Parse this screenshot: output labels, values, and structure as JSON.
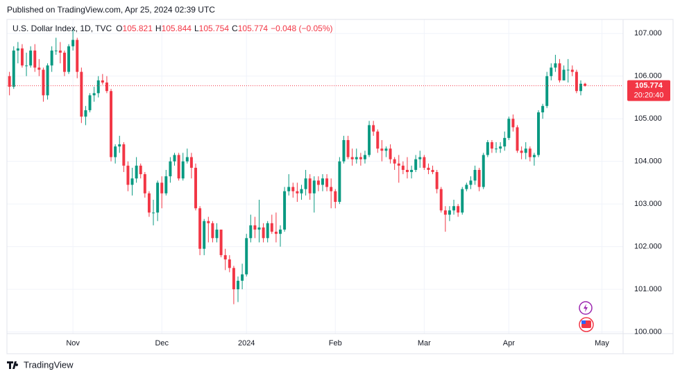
{
  "header": {
    "published": "Published on TradingView.com, Apr 25, 2024 02:39 UTC",
    "brand": "TradingView"
  },
  "chart_data": {
    "type": "candlestick",
    "legend": {
      "symbol": "U.S. Dollar Index, 1D, TVC",
      "ohlc": [
        {
          "label": "O",
          "value": 105.821
        },
        {
          "label": "H",
          "value": 105.844
        },
        {
          "label": "L",
          "value": 105.754
        },
        {
          "label": "C",
          "value": 105.774
        }
      ],
      "change": "−0.048 (−0.05%)"
    },
    "up_color": "#089981",
    "down_color": "#f23645",
    "countdown": "20:20:40",
    "open": [
      106.0,
      105.75,
      106.6,
      106.65,
      106.25,
      106.25,
      106.6,
      106.2,
      106.15,
      105.55,
      106.25,
      106.6,
      106.6,
      106.55,
      106.1,
      106.7,
      106.85,
      106.1,
      105.05,
      105.2,
      105.55,
      105.6,
      105.9,
      105.85,
      105.65,
      104.1,
      104.35,
      104.4,
      103.9,
      103.45,
      103.6,
      103.9,
      103.7,
      103.25,
      102.8,
      102.8,
      103.5,
      103.25,
      103.65,
      104.0,
      104.15,
      103.6,
      104.0,
      104.1,
      103.85,
      102.9,
      101.95,
      102.6,
      102.55,
      102.2,
      102.4,
      101.8,
      101.7,
      101.5,
      101.0,
      101.2,
      101.35,
      102.2,
      102.5,
      102.4,
      102.45,
      102.2,
      102.55,
      102.35,
      102.3,
      102.4,
      103.3,
      103.4,
      103.3,
      103.25,
      103.35,
      103.6,
      103.25,
      103.55,
      103.45,
      103.6,
      103.4,
      103.3,
      103.05,
      104.0,
      104.5,
      104.1,
      104.05,
      104.1,
      104.05,
      104.15,
      104.85,
      104.7,
      104.3,
      104.25,
      104.3,
      104.05,
      103.95,
      103.9,
      103.8,
      103.75,
      103.8,
      104.05,
      104.1,
      103.85,
      103.8,
      103.75,
      103.35,
      102.85,
      102.75,
      102.85,
      102.95,
      102.8,
      103.35,
      103.45,
      103.55,
      103.8,
      103.4,
      104.15,
      104.45,
      104.3,
      104.3,
      104.35,
      104.55,
      105.0,
      104.8,
      104.25,
      104.2,
      104.3,
      104.1,
      104.15,
      105.15,
      105.3,
      106.0,
      106.2,
      106.3,
      105.9,
      106.15,
      106.15,
      106.1,
      105.65,
      105.821
    ],
    "high": [
      106.1,
      106.7,
      106.8,
      106.75,
      106.55,
      106.7,
      106.75,
      106.4,
      106.2,
      106.3,
      106.7,
      106.9,
      106.8,
      106.6,
      106.75,
      107.1,
      106.9,
      106.2,
      105.3,
      105.6,
      105.75,
      106.0,
      106.05,
      106.0,
      105.7,
      104.4,
      104.6,
      104.45,
      104.0,
      103.85,
      104.1,
      103.95,
      103.75,
      103.3,
      103.1,
      103.55,
      103.65,
      103.8,
      104.1,
      104.2,
      104.2,
      104.2,
      104.3,
      104.2,
      103.95,
      102.95,
      102.65,
      102.7,
      102.6,
      102.55,
      102.4,
      101.95,
      101.8,
      101.55,
      101.3,
      101.6,
      102.3,
      102.75,
      102.7,
      103.1,
      102.55,
      102.6,
      102.75,
      102.8,
      102.5,
      103.4,
      103.7,
      103.5,
      103.5,
      103.45,
      103.8,
      103.7,
      103.65,
      103.65,
      103.7,
      103.7,
      103.6,
      103.35,
      104.1,
      104.6,
      104.6,
      104.3,
      104.3,
      104.2,
      104.25,
      104.95,
      104.95,
      104.75,
      104.5,
      104.35,
      104.4,
      104.1,
      104.15,
      104.0,
      104.1,
      103.9,
      104.15,
      104.25,
      104.15,
      103.95,
      103.9,
      103.8,
      103.4,
      102.95,
      102.95,
      103.1,
      103.0,
      103.4,
      103.5,
      103.65,
      103.9,
      103.85,
      104.2,
      104.5,
      104.5,
      104.45,
      104.45,
      104.7,
      105.05,
      105.1,
      104.85,
      104.35,
      104.45,
      104.35,
      104.2,
      105.2,
      105.35,
      106.1,
      106.3,
      106.5,
      106.4,
      106.25,
      106.4,
      106.25,
      106.15,
      105.9,
      105.844
    ],
    "low": [
      105.55,
      105.7,
      106.3,
      106.2,
      106.0,
      106.2,
      106.1,
      106.0,
      105.4,
      105.45,
      106.1,
      106.5,
      106.3,
      106.0,
      106.05,
      106.6,
      105.95,
      104.9,
      104.85,
      105.15,
      105.4,
      105.5,
      105.8,
      105.6,
      104.0,
      103.95,
      104.2,
      103.75,
      103.3,
      103.2,
      103.5,
      103.6,
      103.15,
      102.7,
      102.5,
      102.6,
      102.9,
      103.2,
      103.5,
      103.9,
      103.55,
      103.55,
      103.95,
      103.6,
      102.85,
      101.8,
      101.8,
      102.1,
      102.1,
      102.1,
      101.75,
      101.45,
      101.4,
      100.65,
      100.7,
      101.0,
      101.3,
      102.1,
      102.2,
      102.1,
      102.1,
      102.1,
      102.3,
      102.1,
      102.0,
      102.35,
      103.2,
      103.15,
      103.05,
      103.1,
      103.2,
      103.1,
      102.8,
      103.3,
      103.3,
      103.3,
      102.9,
      102.9,
      103.0,
      103.95,
      104.05,
      103.9,
      103.95,
      103.9,
      103.95,
      104.1,
      104.6,
      104.2,
      104.0,
      104.1,
      103.95,
      103.8,
      103.5,
      103.7,
      103.6,
      103.6,
      103.75,
      103.85,
      103.8,
      103.7,
      103.7,
      103.25,
      102.8,
      102.35,
      102.6,
      102.75,
      102.7,
      102.75,
      103.3,
      103.35,
      103.45,
      103.3,
      103.35,
      104.1,
      104.2,
      104.2,
      104.2,
      104.25,
      104.5,
      104.7,
      104.2,
      104.05,
      104.05,
      104.0,
      103.9,
      104.1,
      105.0,
      105.25,
      105.9,
      106.1,
      105.85,
      105.9,
      105.85,
      106.0,
      105.6,
      105.55,
      105.754
    ],
    "close": [
      105.75,
      106.6,
      106.65,
      106.25,
      106.25,
      106.6,
      106.2,
      106.15,
      105.55,
      106.25,
      106.6,
      106.6,
      106.55,
      106.1,
      106.7,
      106.85,
      106.1,
      105.05,
      105.2,
      105.55,
      105.6,
      105.9,
      105.85,
      105.65,
      104.1,
      104.35,
      104.4,
      103.9,
      103.45,
      103.6,
      103.9,
      103.7,
      103.25,
      102.8,
      102.8,
      103.5,
      103.25,
      103.65,
      104.0,
      104.15,
      103.6,
      104.0,
      104.1,
      103.85,
      102.9,
      101.95,
      102.6,
      102.55,
      102.2,
      102.4,
      101.8,
      101.7,
      101.5,
      101.0,
      101.2,
      101.35,
      102.2,
      102.5,
      102.4,
      102.45,
      102.2,
      102.55,
      102.35,
      102.3,
      102.4,
      103.3,
      103.4,
      103.3,
      103.25,
      103.35,
      103.6,
      103.25,
      103.55,
      103.45,
      103.6,
      103.4,
      103.3,
      103.05,
      104.0,
      104.5,
      104.1,
      104.05,
      104.1,
      104.05,
      104.15,
      104.85,
      104.7,
      104.3,
      104.25,
      104.3,
      104.05,
      103.95,
      103.9,
      103.8,
      103.75,
      103.8,
      104.05,
      104.1,
      103.85,
      103.8,
      103.75,
      103.35,
      102.85,
      102.75,
      102.85,
      102.95,
      102.8,
      103.35,
      103.45,
      103.55,
      103.8,
      103.4,
      104.15,
      104.45,
      104.3,
      104.3,
      104.35,
      104.55,
      105.0,
      104.8,
      104.25,
      104.2,
      104.3,
      104.1,
      104.15,
      105.15,
      105.3,
      106.0,
      106.2,
      106.3,
      105.9,
      106.15,
      106.15,
      106.1,
      105.65,
      105.821,
      105.774
    ],
    "xlim": [
      -0.6,
      145
    ],
    "xticks": [
      {
        "value": 15,
        "label": "Nov"
      },
      {
        "value": 36,
        "label": "Dec"
      },
      {
        "value": 56,
        "label": "2024"
      },
      {
        "value": 77,
        "label": "Feb"
      },
      {
        "value": 98,
        "label": "Mar"
      },
      {
        "value": 118,
        "label": "Apr"
      },
      {
        "value": 140,
        "label": "May"
      }
    ],
    "ylim": [
      99.96,
      107.33
    ],
    "yticks": [
      {
        "value": 100,
        "label": "100.000"
      },
      {
        "value": 101,
        "label": "101.000"
      },
      {
        "value": 102,
        "label": "102.000"
      },
      {
        "value": 103,
        "label": "103.000"
      },
      {
        "value": 104,
        "label": "104.000"
      },
      {
        "value": 105,
        "label": "105.000"
      },
      {
        "value": 106,
        "label": "106.000"
      },
      {
        "value": 107,
        "label": "107.000"
      }
    ],
    "grid": true
  }
}
